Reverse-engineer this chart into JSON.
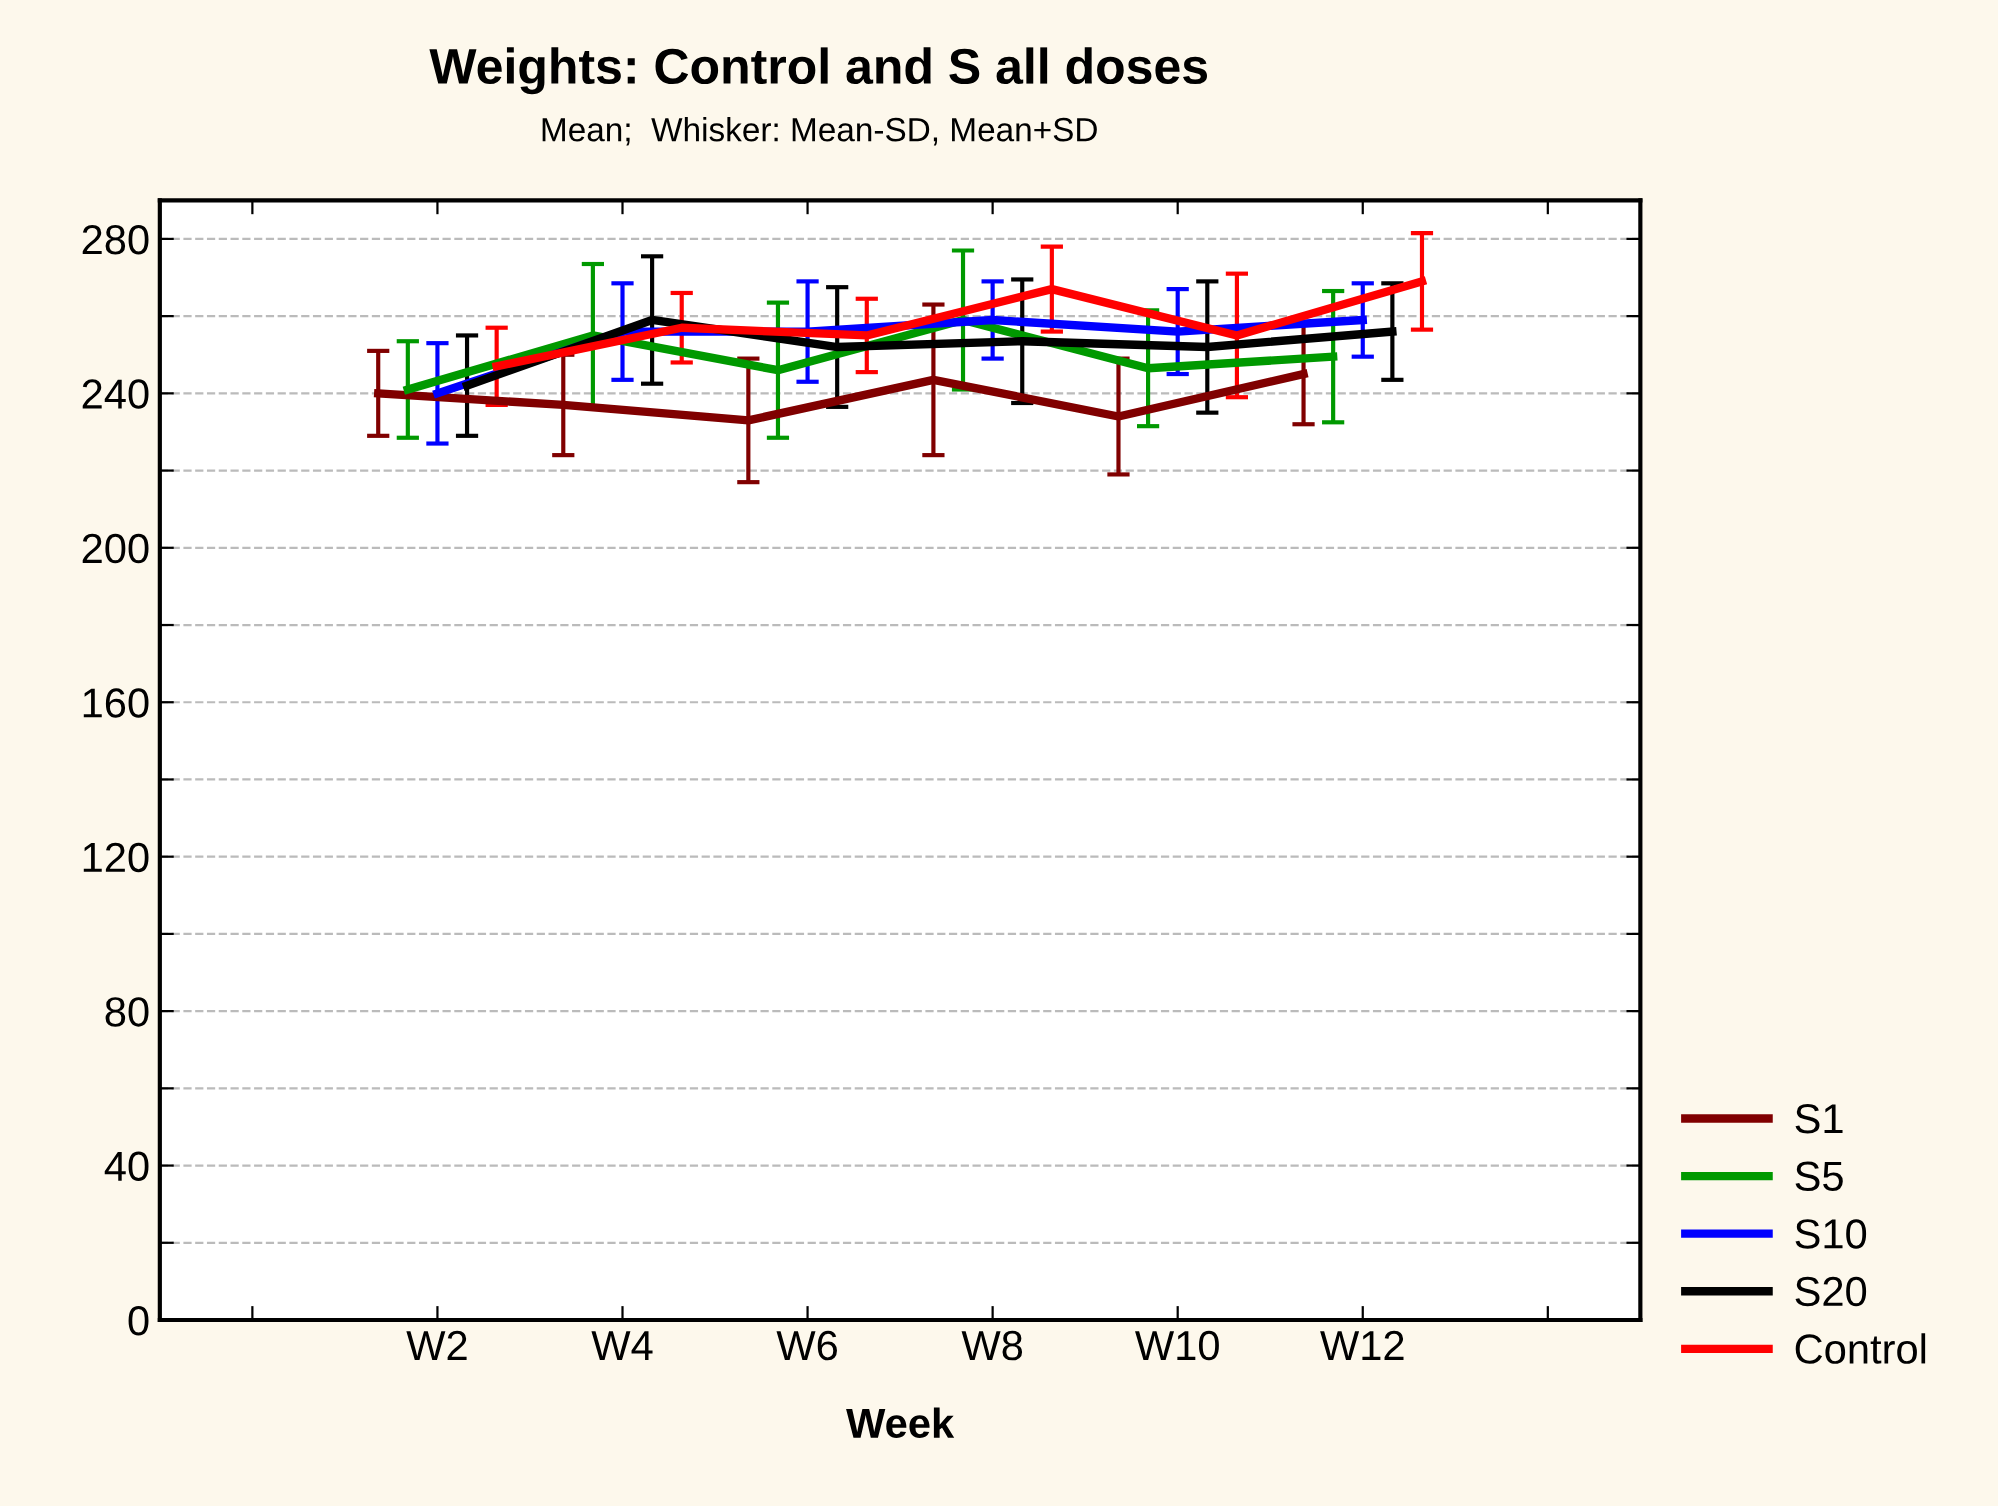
{
  "chart_data": {
    "type": "line",
    "title": "Weights: Control and S all doses",
    "subtitle": "Mean;  Whisker: Mean-SD, Mean+SD",
    "xlabel": "Week",
    "categories": [
      null,
      "W2",
      "W4",
      "W6",
      "W8",
      "W10",
      "W12",
      null
    ],
    "series": [
      {
        "name": "S1",
        "color": "#800000",
        "values": [
          null,
          240,
          237,
          233,
          243.5,
          234,
          245,
          null
        ],
        "errors": [
          null,
          11,
          13,
          16,
          19.5,
          15,
          13,
          null
        ]
      },
      {
        "name": "S5",
        "color": "#009900",
        "values": [
          null,
          241,
          255,
          246,
          259,
          246.5,
          249.5,
          null
        ],
        "errors": [
          null,
          12.5,
          18.5,
          17.5,
          18,
          15,
          17,
          null
        ]
      },
      {
        "name": "S10",
        "color": "#0000ff",
        "values": [
          null,
          240,
          256,
          256,
          259,
          256,
          259,
          null
        ],
        "errors": [
          null,
          13,
          12.5,
          13,
          10,
          11,
          9.5,
          null
        ]
      },
      {
        "name": "S20",
        "color": "#000000",
        "values": [
          null,
          242,
          259,
          252,
          253.5,
          252,
          256,
          null
        ],
        "errors": [
          null,
          13,
          16.5,
          15.5,
          16,
          17,
          12.5,
          null
        ]
      },
      {
        "name": "Control",
        "color": "#ff0000",
        "values": [
          null,
          247,
          257,
          255,
          267,
          255,
          269,
          null
        ],
        "errors": [
          null,
          10,
          9,
          9.5,
          11,
          16,
          12.5,
          null
        ]
      }
    ],
    "ylim": [
      0,
      290
    ],
    "yticks": [
      0,
      {
        "value": 20,
        "label": null
      },
      40,
      {
        "value": 60,
        "label": null
      },
      80,
      {
        "value": 100,
        "label": null
      },
      120,
      {
        "value": 140,
        "label": null
      },
      160,
      {
        "value": 180,
        "label": null
      },
      200,
      {
        "value": 220,
        "label": null
      },
      240,
      {
        "value": 260,
        "label": null
      },
      280
    ],
    "grid": "y",
    "legend": "bottom right",
    "marker": "none",
    "line_style": "solid"
  }
}
